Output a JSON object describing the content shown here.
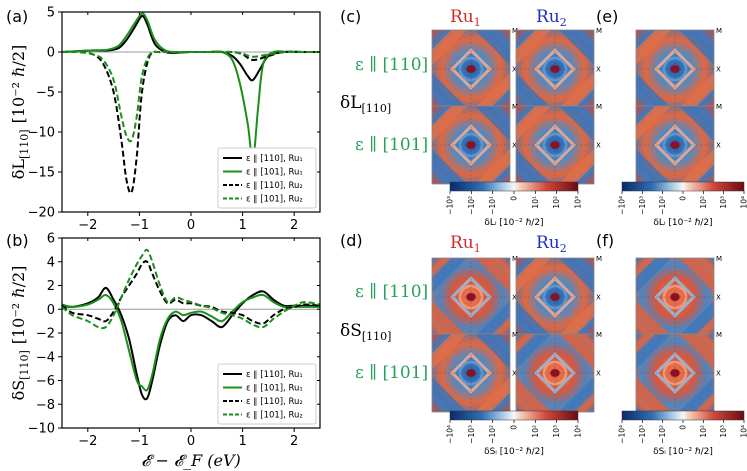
{
  "panels": {
    "a": {
      "label": "(a)"
    },
    "b": {
      "label": "(b)"
    },
    "c": {
      "label": "(c)"
    },
    "d": {
      "label": "(d)"
    },
    "e": {
      "label": "(e)"
    },
    "f": {
      "label": "(f)"
    }
  },
  "ru_labels": {
    "ru1": "Ru",
    "ru2": "Ru",
    "sub1": "1",
    "sub2": "2"
  },
  "polarizations": {
    "p110": "ε ∥ [110]",
    "p101": "ε ∥ [101]"
  },
  "quantities": {
    "dL": "δL",
    "dS": "δS",
    "sub": "[110]"
  },
  "map_labels": {
    "M": "M",
    "X": "X"
  },
  "colorbars": {
    "c": {
      "ticks": [
        "−10³",
        "−10²",
        "−10¹",
        "0",
        "10¹",
        "10²",
        "10³"
      ],
      "label": "δLᵢ  [10⁻² ℏ/2]"
    },
    "e": {
      "ticks": [
        "−10⁴",
        "−10³",
        "−10²",
        "0",
        "10²",
        "10³",
        "10⁴"
      ],
      "label": "δLᵢ  [10⁻² ℏ/2]"
    },
    "d": {
      "ticks": [
        "−10⁴",
        "−10³",
        "−10²",
        "0",
        "10²",
        "10³",
        "10⁴"
      ],
      "label": "δSᵢ  [10⁻² ℏ/2]"
    },
    "f": {
      "ticks": [
        "−10⁴",
        "−10³",
        "−10²",
        "0",
        "10²",
        "10³",
        "10⁴"
      ],
      "label": "δSᵢ  [10⁻² ℏ/2]"
    }
  },
  "colors": {
    "black": "#000000",
    "green": "#1a8f1a",
    "ru1": "#d62728",
    "ru2": "#1f2fbf",
    "pol": "#2aa05a"
  },
  "chart_data": [
    {
      "type": "line",
      "panel": "a",
      "ylabel_main": "δL",
      "ylabel_sub": "[110]",
      "ylabel_unit": "[10⁻² ℏ/2]",
      "xlim": [
        -2.5,
        2.5
      ],
      "ylim": [
        -20,
        5
      ],
      "xticks": [
        -2,
        -1,
        0,
        1,
        2
      ],
      "yticks": [
        -20,
        -15,
        -10,
        -5,
        0,
        5
      ],
      "xtick_labels": [
        "−2",
        "−1",
        "0",
        "1",
        "2"
      ],
      "ytick_labels": [
        "−20",
        "−15",
        "−10",
        "−5",
        "0",
        "5"
      ],
      "legend": [
        "ε ∥ [110], Ru₁",
        "ε ∥ [101], Ru₁",
        "ε ∥ [110], Ru₂",
        "ε ∥ [101], Ru₂"
      ],
      "legend_position": "bottom-right",
      "series": [
        {
          "name": "ε ∥ [110], Ru₁",
          "style": "solid-black",
          "x": [
            -2.5,
            -2.2,
            -1.9,
            -1.6,
            -1.4,
            -1.25,
            -1.1,
            -0.95,
            -0.85,
            -0.7,
            -0.5,
            -0.3,
            0.0,
            0.3,
            0.6,
            0.8,
            0.95,
            1.1,
            1.2,
            1.35,
            1.5,
            1.8,
            2.2,
            2.5
          ],
          "y": [
            0,
            0.1,
            0.2,
            0.2,
            0.5,
            1.5,
            3.0,
            4.5,
            3.5,
            1.0,
            0,
            -0.1,
            0,
            0,
            0,
            -0.5,
            -1.5,
            -3.0,
            -3.5,
            -2.0,
            -0.5,
            0,
            0,
            0
          ]
        },
        {
          "name": "ε ∥ [101], Ru₁",
          "style": "solid-green",
          "x": [
            -2.5,
            -2.2,
            -1.9,
            -1.6,
            -1.4,
            -1.25,
            -1.1,
            -0.95,
            -0.85,
            -0.7,
            -0.5,
            -0.3,
            0.0,
            0.3,
            0.6,
            0.8,
            0.95,
            1.1,
            1.2,
            1.3,
            1.4,
            1.6,
            1.9,
            2.2,
            2.5
          ],
          "y": [
            0,
            0.1,
            0.2,
            0.3,
            0.8,
            2.0,
            3.5,
            4.8,
            4.0,
            1.5,
            0.2,
            0,
            0,
            0,
            0,
            -1.0,
            -4.0,
            -9.0,
            -13.5,
            -7.0,
            -1.5,
            0,
            0,
            0,
            0
          ]
        },
        {
          "name": "ε ∥ [110], Ru₂",
          "style": "dashed-black",
          "x": [
            -2.5,
            -2.2,
            -1.9,
            -1.7,
            -1.5,
            -1.35,
            -1.25,
            -1.15,
            -1.05,
            -0.95,
            -0.8,
            -0.6,
            -0.4,
            0.0,
            0.4,
            0.8,
            1.0,
            1.2,
            1.5,
            1.8,
            2.2,
            2.5
          ],
          "y": [
            0,
            0,
            -0.3,
            -1.5,
            -5.0,
            -11.0,
            -16.0,
            -17.5,
            -13.0,
            -5.0,
            -0.5,
            0,
            0,
            0,
            0,
            0,
            -0.3,
            -1.0,
            -0.5,
            0,
            0,
            0
          ]
        },
        {
          "name": "ε ∥ [101], Ru₂",
          "style": "dashed-green",
          "x": [
            -2.5,
            -2.2,
            -1.9,
            -1.7,
            -1.5,
            -1.35,
            -1.25,
            -1.15,
            -1.05,
            -0.95,
            -0.8,
            -0.6,
            -0.4,
            0.0,
            0.4,
            0.8,
            1.0,
            1.2,
            1.5,
            1.8,
            2.2,
            2.5
          ],
          "y": [
            0,
            0,
            -0.3,
            -1.0,
            -3.5,
            -8.0,
            -10.5,
            -11.0,
            -8.0,
            -3.0,
            -0.3,
            0,
            0,
            0,
            0,
            0,
            -0.2,
            -0.6,
            -0.3,
            0,
            0,
            0
          ]
        }
      ]
    },
    {
      "type": "line",
      "panel": "b",
      "ylabel_main": "δS",
      "ylabel_sub": "[110]",
      "ylabel_unit": "[10⁻² ℏ/2]",
      "xlabel": "𝓔 − 𝓔_F (eV)",
      "xlim": [
        -2.5,
        2.5
      ],
      "ylim": [
        -10,
        6
      ],
      "xticks": [
        -2,
        -1,
        0,
        1,
        2
      ],
      "yticks": [
        -10,
        -8,
        -6,
        -4,
        -2,
        0,
        2,
        4,
        6
      ],
      "xtick_labels": [
        "−2",
        "−1",
        "0",
        "1",
        "2"
      ],
      "ytick_labels": [
        "−10",
        "−8",
        "−6",
        "−4",
        "−2",
        "0",
        "2",
        "4",
        "6"
      ],
      "legend": [
        "ε ∥ [110], Ru₁",
        "ε ∥ [101], Ru₁",
        "ε ∥ [110], Ru₂",
        "ε ∥ [101], Ru₂"
      ],
      "legend_position": "bottom-right",
      "series": [
        {
          "name": "ε ∥ [110], Ru₁",
          "style": "solid-black",
          "x": [
            -2.5,
            -2.3,
            -2.0,
            -1.8,
            -1.65,
            -1.5,
            -1.35,
            -1.2,
            -1.05,
            -0.95,
            -0.85,
            -0.75,
            -0.6,
            -0.45,
            -0.3,
            -0.15,
            0.0,
            0.2,
            0.4,
            0.6,
            0.8,
            1.0,
            1.2,
            1.4,
            1.6,
            1.8,
            2.0,
            2.2,
            2.5
          ],
          "y": [
            0.3,
            0.2,
            0.5,
            1.0,
            1.8,
            0.8,
            -0.5,
            -2.5,
            -5.5,
            -7.2,
            -7.5,
            -6.0,
            -3.0,
            -1.0,
            -0.5,
            -1.0,
            -0.5,
            -0.5,
            -1.0,
            -1.5,
            -0.5,
            0.5,
            1.2,
            1.5,
            0.8,
            0.3,
            0.3,
            0.3,
            0.3
          ]
        },
        {
          "name": "ε ∥ [101], Ru₁",
          "style": "solid-green",
          "x": [
            -2.5,
            -2.3,
            -2.0,
            -1.8,
            -1.65,
            -1.5,
            -1.35,
            -1.2,
            -1.05,
            -0.95,
            -0.85,
            -0.75,
            -0.6,
            -0.45,
            -0.3,
            -0.15,
            0.0,
            0.2,
            0.4,
            0.6,
            0.8,
            1.0,
            1.2,
            1.4,
            1.6,
            1.8,
            2.0,
            2.2,
            2.5
          ],
          "y": [
            0.4,
            0.2,
            0.4,
            0.8,
            1.2,
            0.5,
            -1.0,
            -3.5,
            -6.0,
            -6.5,
            -6.8,
            -5.5,
            -2.5,
            -0.8,
            -0.2,
            -0.5,
            -0.3,
            -0.2,
            -0.6,
            -1.0,
            -0.2,
            0.6,
            1.0,
            1.2,
            0.6,
            0.2,
            0.2,
            0.2,
            0.2
          ]
        },
        {
          "name": "ε ∥ [110], Ru₂",
          "style": "dashed-black",
          "x": [
            -2.5,
            -2.3,
            -2.0,
            -1.8,
            -1.65,
            -1.5,
            -1.35,
            -1.2,
            -1.05,
            -0.95,
            -0.85,
            -0.75,
            -0.6,
            -0.45,
            -0.3,
            -0.15,
            0.0,
            0.2,
            0.4,
            0.6,
            0.8,
            1.0,
            1.2,
            1.4,
            1.6,
            1.8,
            2.0,
            2.2,
            2.5
          ],
          "y": [
            0.3,
            -0.3,
            -0.5,
            -0.8,
            -1.0,
            -0.2,
            1.0,
            2.0,
            3.0,
            3.8,
            4.0,
            3.0,
            1.5,
            0.5,
            0.8,
            0.5,
            0.5,
            0.3,
            0.2,
            -0.2,
            -0.3,
            -0.5,
            -1.0,
            -1.2,
            -0.5,
            0,
            0.2,
            0.4,
            0.3
          ]
        },
        {
          "name": "ε ∥ [101], Ru₂",
          "style": "dashed-green",
          "x": [
            -2.5,
            -2.3,
            -2.0,
            -1.8,
            -1.65,
            -1.5,
            -1.35,
            -1.2,
            -1.05,
            -0.95,
            -0.85,
            -0.75,
            -0.6,
            -0.45,
            -0.3,
            -0.15,
            0.0,
            0.2,
            0.4,
            0.6,
            0.8,
            1.0,
            1.2,
            1.4,
            1.6,
            1.8,
            2.0,
            2.2,
            2.5
          ],
          "y": [
            0.2,
            -0.5,
            -1.0,
            -1.5,
            -1.5,
            -0.5,
            1.0,
            2.5,
            3.8,
            4.5,
            5.0,
            4.0,
            2.0,
            0.6,
            1.0,
            0.8,
            0.6,
            0.3,
            0.1,
            -0.3,
            -0.5,
            -0.8,
            -1.3,
            -1.5,
            -0.8,
            -0.2,
            0.3,
            0.6,
            0.4
          ]
        }
      ]
    }
  ]
}
